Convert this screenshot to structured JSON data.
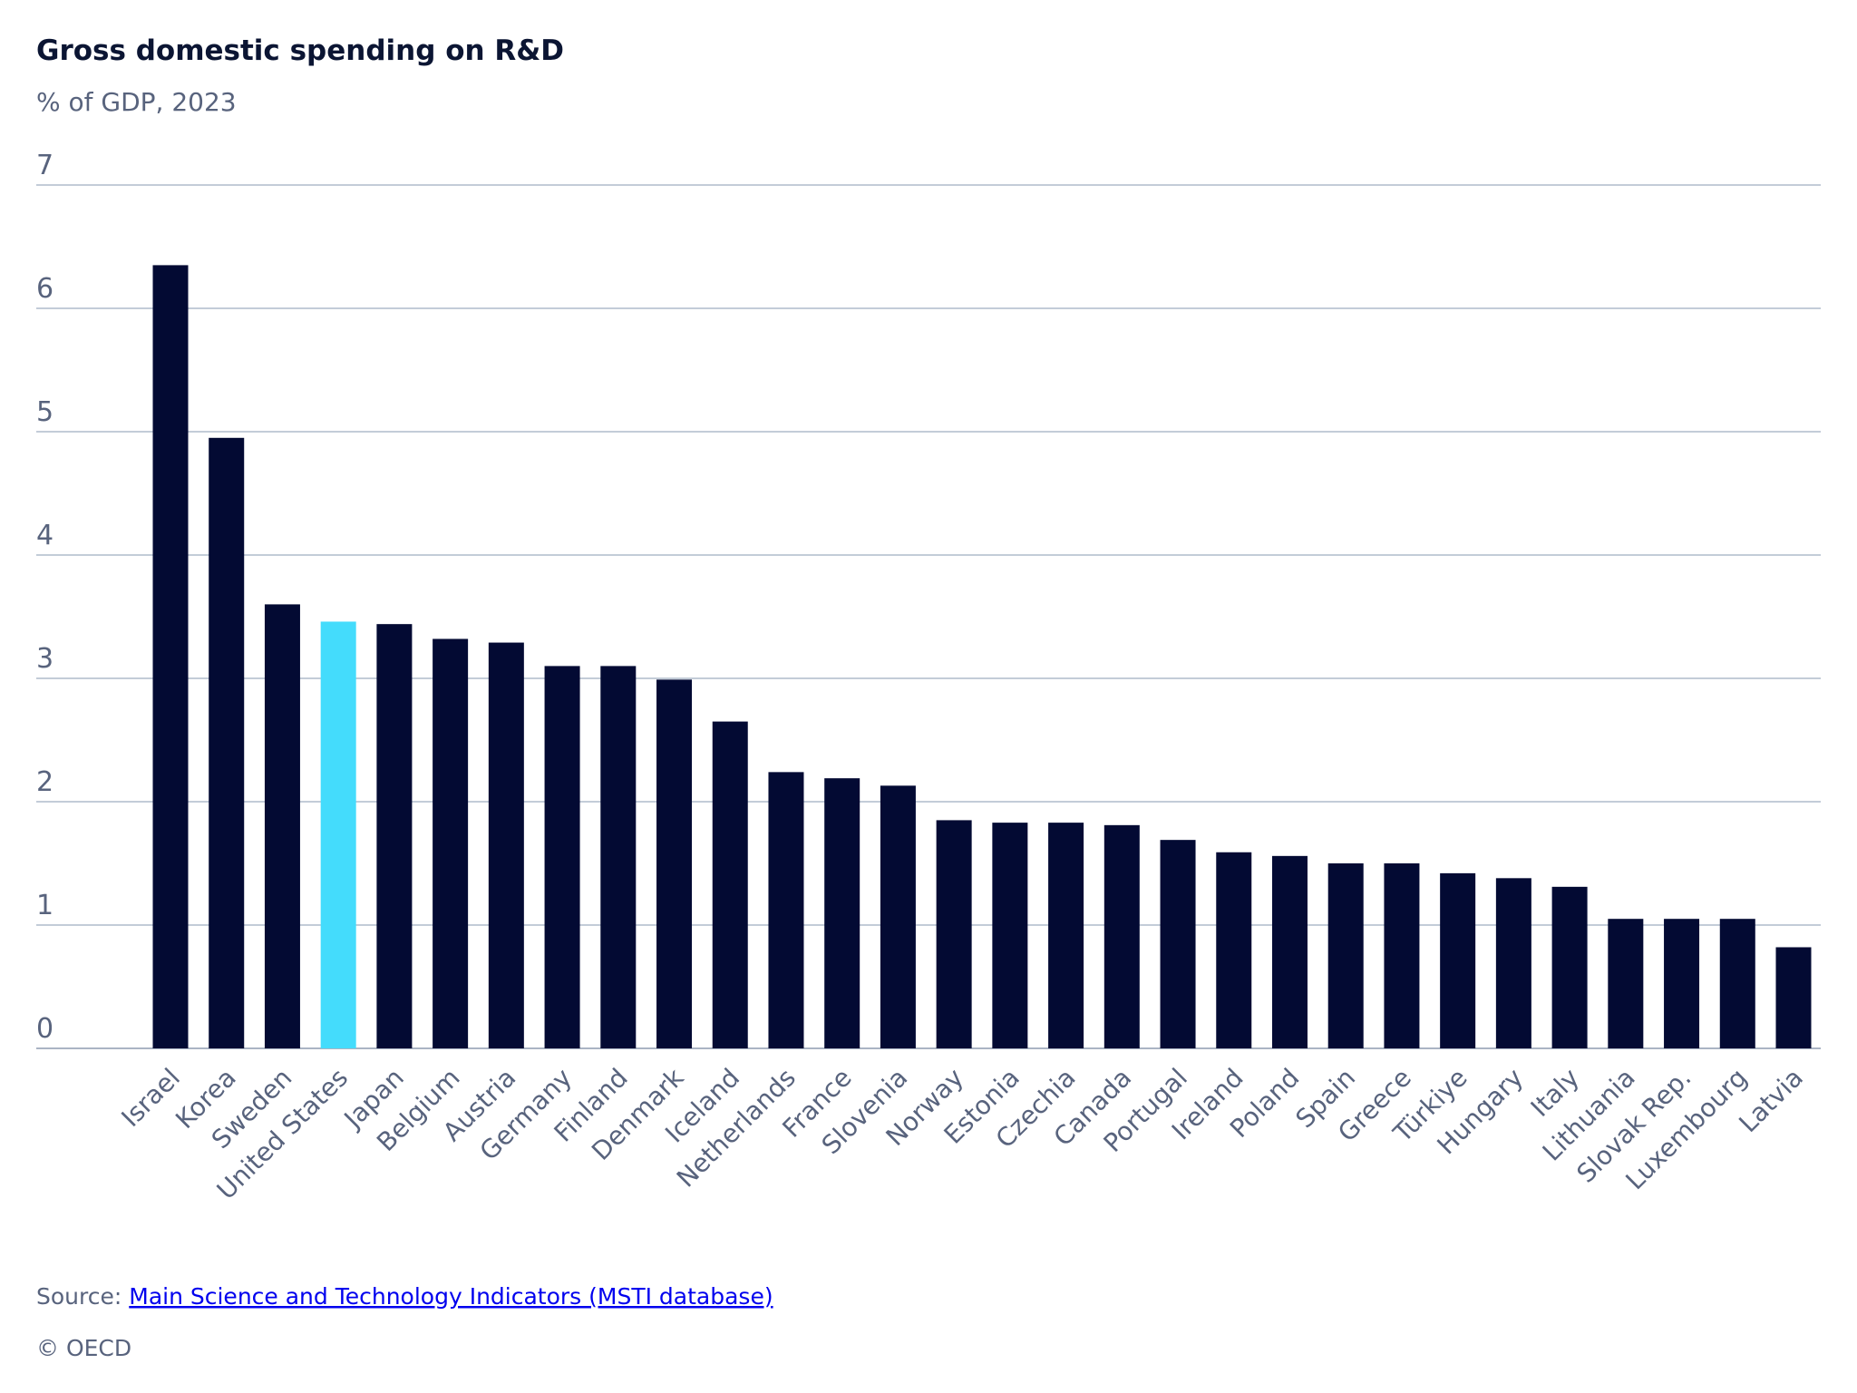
{
  "chart_data": {
    "type": "bar",
    "title": "Gross domestic spending on R&D",
    "subtitle": "% of GDP, 2023",
    "categories": [
      "Israel",
      "Korea",
      "Sweden",
      "United States",
      "Japan",
      "Belgium",
      "Austria",
      "Germany",
      "Finland",
      "Denmark",
      "Iceland",
      "Netherlands",
      "France",
      "Slovenia",
      "Norway",
      "Estonia",
      "Czechia",
      "Canada",
      "Portugal",
      "Ireland",
      "Poland",
      "Spain",
      "Greece",
      "Türkiye",
      "Hungary",
      "Italy",
      "Lithuania",
      "Slovak Rep.",
      "Luxembourg",
      "Latvia"
    ],
    "values": [
      6.35,
      4.95,
      3.6,
      3.46,
      3.44,
      3.32,
      3.29,
      3.1,
      3.1,
      2.99,
      2.65,
      2.24,
      2.19,
      2.13,
      1.85,
      1.83,
      1.83,
      1.81,
      1.69,
      1.59,
      1.56,
      1.5,
      1.5,
      1.42,
      1.38,
      1.31,
      1.05,
      1.05,
      1.05,
      0.82
    ],
    "colors": [
      "#030a33",
      "#030a33",
      "#030a33",
      "#44dcfc",
      "#030a33",
      "#030a33",
      "#030a33",
      "#030a33",
      "#030a33",
      "#030a33",
      "#030a33",
      "#030a33",
      "#030a33",
      "#030a33",
      "#030a33",
      "#030a33",
      "#030a33",
      "#030a33",
      "#030a33",
      "#030a33",
      "#030a33",
      "#030a33",
      "#030a33",
      "#030a33",
      "#030a33",
      "#030a33",
      "#030a33",
      "#030a33",
      "#030a33",
      "#030a33"
    ],
    "ylim": [
      0,
      7
    ],
    "yticks": [
      0,
      1,
      2,
      3,
      4,
      5,
      6,
      7
    ],
    "grid": true,
    "source_label": "Source:",
    "source_link": "Main Science and Technology Indicators (MSTI database)",
    "copyright": "© OECD"
  }
}
